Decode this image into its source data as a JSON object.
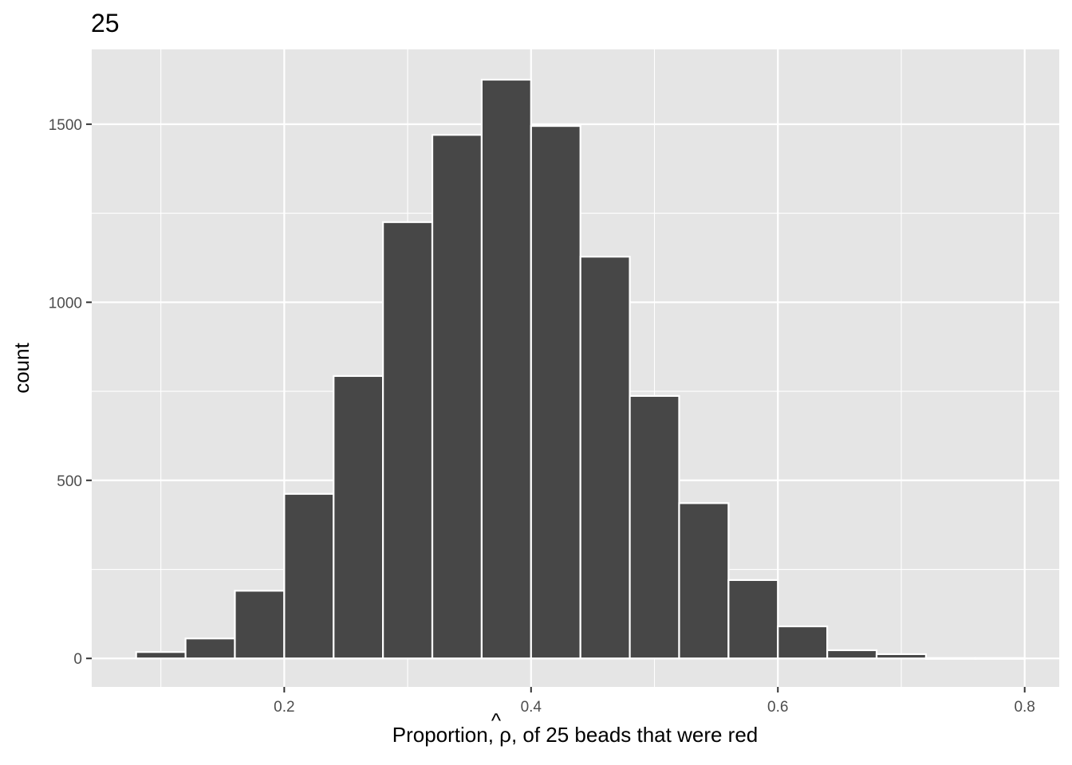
{
  "chart_data": {
    "type": "bar",
    "title": "25",
    "xlabel_parts": [
      "Proportion, ",
      "ρ",
      ", of 25 beads that were red"
    ],
    "ylabel": "count",
    "xlim": [
      0.044,
      0.828
    ],
    "ylim": [
      -80,
      1710
    ],
    "x_ticks": [
      0.2,
      0.4,
      0.6,
      0.8
    ],
    "x_tick_labels": [
      "0.2",
      "0.4",
      "0.6",
      "0.8"
    ],
    "x_minor_ticks": [
      0.1,
      0.3,
      0.5,
      0.7
    ],
    "y_ticks": [
      0,
      500,
      1000,
      1500
    ],
    "y_tick_labels": [
      "0",
      "500",
      "1000",
      "1500"
    ],
    "y_minor_ticks": [
      250,
      750,
      1250
    ],
    "bin_width": 0.04,
    "bins": [
      {
        "x": 0.1,
        "count": 18
      },
      {
        "x": 0.14,
        "count": 56
      },
      {
        "x": 0.18,
        "count": 190
      },
      {
        "x": 0.22,
        "count": 462
      },
      {
        "x": 0.26,
        "count": 793
      },
      {
        "x": 0.3,
        "count": 1225
      },
      {
        "x": 0.34,
        "count": 1470
      },
      {
        "x": 0.38,
        "count": 1625
      },
      {
        "x": 0.42,
        "count": 1495
      },
      {
        "x": 0.46,
        "count": 1128
      },
      {
        "x": 0.5,
        "count": 737
      },
      {
        "x": 0.54,
        "count": 436
      },
      {
        "x": 0.58,
        "count": 220
      },
      {
        "x": 0.62,
        "count": 90
      },
      {
        "x": 0.66,
        "count": 23
      },
      {
        "x": 0.7,
        "count": 12
      },
      {
        "x": 0.74,
        "count": 1
      },
      {
        "x": 0.78,
        "count": 1
      }
    ],
    "grid": true,
    "colors": {
      "panel": "#e5e5e5",
      "grid": "#ffffff",
      "bar_fill": "#474747",
      "bar_outline": "#ffffff"
    }
  }
}
